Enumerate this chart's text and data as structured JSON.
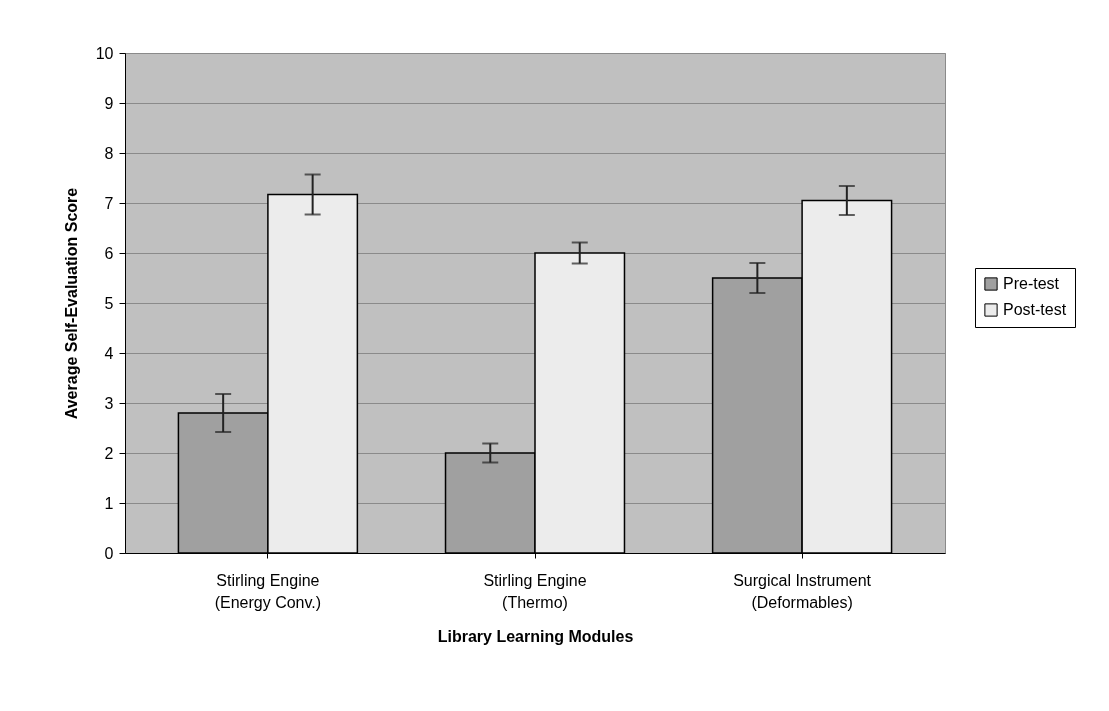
{
  "chart_data": {
    "type": "bar",
    "xlabel": "Library Learning Modules",
    "ylabel": "Average Self-Evaluation Score",
    "categories": [
      "Stirling Engine\n(Energy Conv.)",
      "Stirling Engine\n(Thermo)",
      "Surgical Instrument\n(Deformables)"
    ],
    "series": [
      {
        "name": "Pre-test",
        "color": "#a0a0a0",
        "values": [
          2.8,
          2.0,
          5.5
        ],
        "errors": [
          0.38,
          0.19,
          0.3
        ]
      },
      {
        "name": "Post-test",
        "color": "#ececec",
        "values": [
          7.17,
          6.0,
          7.05
        ],
        "errors": [
          0.4,
          0.21,
          0.29
        ]
      }
    ],
    "ylim": [
      0,
      10
    ],
    "yticks": [
      0,
      1,
      2,
      3,
      4,
      5,
      6,
      7,
      8,
      9,
      10
    ],
    "grid": "y",
    "legend": "right"
  }
}
